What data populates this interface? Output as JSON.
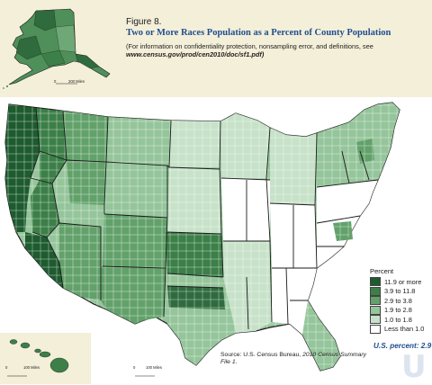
{
  "figure": {
    "label": "Figure 8.",
    "title": "Two or More Races Population as a Percent of County Population",
    "note": "(For information on confidentiality protection, nonsampling error, and definitions, see",
    "note_url": "www.census.gov/prod/cen2010/doc/sf1.pdf)"
  },
  "legend": {
    "title": "Percent",
    "items": [
      {
        "label": "11.9 or more",
        "color": "#1e5b2f"
      },
      {
        "label": "3.9 to 11.8",
        "color": "#3c7f48"
      },
      {
        "label": "2.9 to 3.8",
        "color": "#63a16b"
      },
      {
        "label": "1.9 to 2.8",
        "color": "#95c59b"
      },
      {
        "label": "1.0 to 1.8",
        "color": "#c7e2c9"
      },
      {
        "label": "Less than 1.0",
        "color": "#ffffff"
      }
    ]
  },
  "us_percent": "U.S. percent: 2.9",
  "source": {
    "prefix": "Source: U.S. Census Bureau,",
    "title": "2010 Census Summary File 1."
  },
  "scales": {
    "alaska": {
      "zero": "0",
      "distance": "200 Miles"
    },
    "hawaii": {
      "zero": "0",
      "distance": "100 Miles"
    },
    "conus": {
      "zero": "0",
      "distance": "100 Miles"
    }
  },
  "watermark": "U",
  "colors": {
    "header_band": "#f4efd9",
    "state_border": "#1a1a1a",
    "title_blue": "#1f4e8f"
  },
  "insets": [
    "Alaska",
    "Hawaii"
  ]
}
